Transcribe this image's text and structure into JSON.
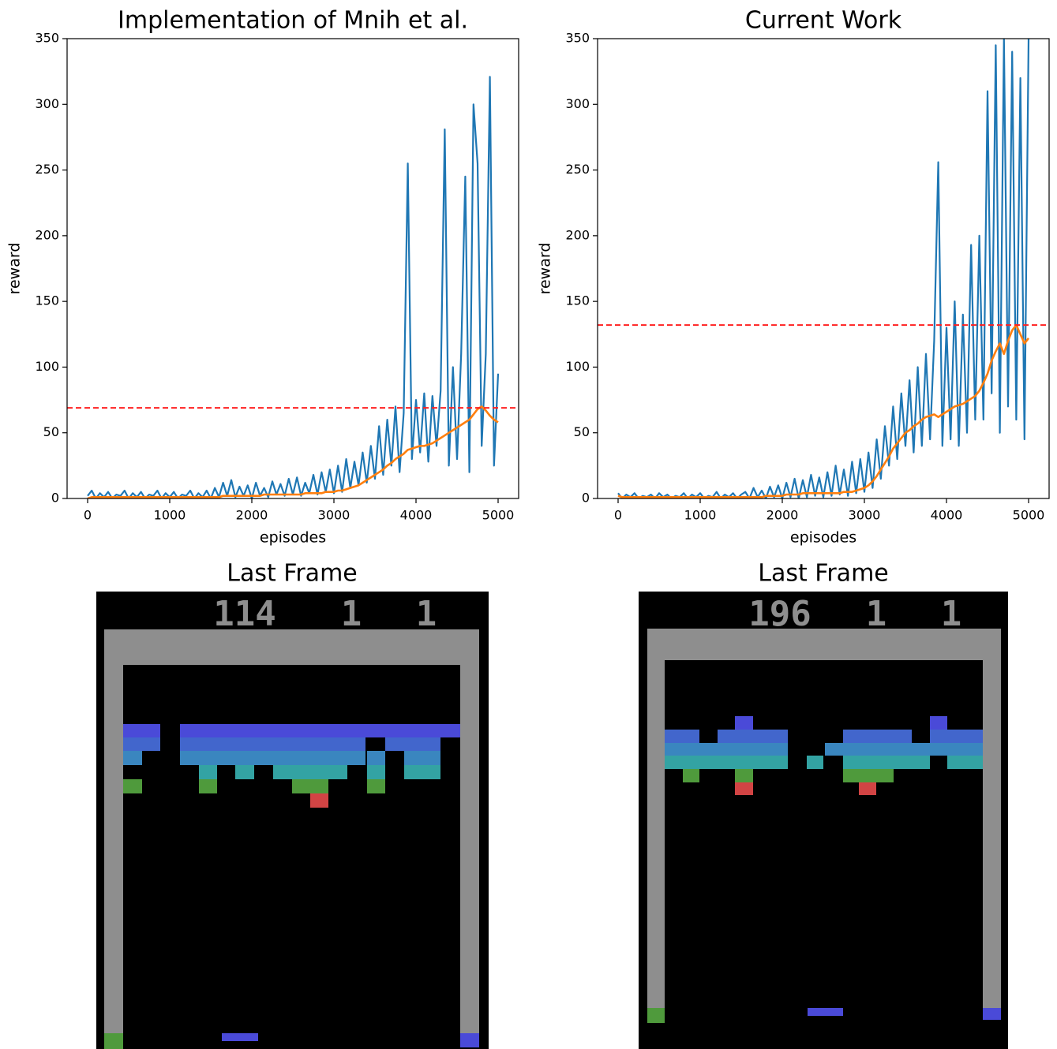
{
  "chart_data": [
    {
      "type": "line",
      "title": "Implementation of Mnih et al.",
      "xlabel": "episodes",
      "ylabel": "reward",
      "x": [
        0,
        50,
        100,
        150,
        200,
        250,
        300,
        350,
        400,
        450,
        500,
        550,
        600,
        650,
        700,
        750,
        800,
        850,
        900,
        950,
        1000,
        1050,
        1100,
        1150,
        1200,
        1250,
        1300,
        1350,
        1400,
        1450,
        1500,
        1550,
        1600,
        1650,
        1700,
        1750,
        1800,
        1850,
        1900,
        1950,
        2000,
        2050,
        2100,
        2150,
        2200,
        2250,
        2300,
        2350,
        2400,
        2450,
        2500,
        2550,
        2600,
        2650,
        2700,
        2750,
        2800,
        2850,
        2900,
        2950,
        3000,
        3050,
        3100,
        3150,
        3200,
        3250,
        3300,
        3350,
        3400,
        3450,
        3500,
        3550,
        3600,
        3650,
        3700,
        3750,
        3800,
        3850,
        3900,
        3950,
        4000,
        4050,
        4100,
        4150,
        4200,
        4250,
        4300,
        4350,
        4400,
        4450,
        4500,
        4550,
        4600,
        4650,
        4700,
        4750,
        4800,
        4850,
        4900,
        4950,
        5000
      ],
      "series": [
        {
          "color": "#1f77b4",
          "values": [
            2,
            6,
            0,
            4,
            1,
            5,
            0,
            3,
            2,
            6,
            0,
            4,
            1,
            5,
            0,
            3,
            2,
            6,
            0,
            4,
            1,
            5,
            0,
            3,
            2,
            6,
            0,
            4,
            1,
            6,
            0,
            8,
            1,
            12,
            2,
            14,
            1,
            9,
            2,
            10,
            0,
            12,
            2,
            8,
            1,
            13,
            3,
            11,
            2,
            15,
            3,
            16,
            2,
            12,
            4,
            18,
            3,
            20,
            5,
            22,
            4,
            25,
            5,
            30,
            8,
            28,
            10,
            35,
            12,
            40,
            15,
            55,
            18,
            60,
            25,
            70,
            20,
            65,
            255,
            30,
            75,
            35,
            80,
            28,
            78,
            40,
            82,
            281,
            25,
            100,
            30,
            110,
            245,
            20,
            300,
            255,
            40,
            110,
            321,
            25,
            95
          ]
        },
        {
          "color": "#ff7f0e",
          "values": [
            0,
            1,
            1,
            1,
            1,
            1,
            1,
            1,
            1,
            1,
            1,
            1,
            1,
            1,
            1,
            1,
            1,
            1,
            1,
            1,
            1,
            1,
            1,
            1,
            1,
            1,
            1,
            1,
            1,
            1,
            1,
            1,
            1,
            2,
            2,
            2,
            2,
            2,
            2,
            2,
            2,
            2,
            2,
            3,
            3,
            3,
            3,
            3,
            3,
            3,
            3,
            3,
            3,
            4,
            4,
            4,
            4,
            4,
            5,
            5,
            5,
            6,
            6,
            7,
            8,
            9,
            10,
            12,
            14,
            16,
            18,
            20,
            22,
            25,
            27,
            30,
            32,
            34,
            37,
            38,
            39,
            40,
            40,
            41,
            42,
            44,
            46,
            48,
            50,
            52,
            54,
            56,
            58,
            60,
            64,
            68,
            70,
            67,
            63,
            60,
            58
          ]
        }
      ],
      "threshold": {
        "value": 69,
        "color": "#ff2020"
      },
      "xlim": [
        -250,
        5250
      ],
      "ylim": [
        0,
        350
      ],
      "xticks": [
        0,
        1000,
        2000,
        3000,
        4000,
        5000
      ],
      "yticks": [
        0,
        50,
        100,
        150,
        200,
        250,
        300,
        350
      ],
      "grid": false
    },
    {
      "type": "line",
      "title": "Current Work",
      "xlabel": "episodes",
      "ylabel": "reward",
      "x": [
        0,
        50,
        100,
        150,
        200,
        250,
        300,
        350,
        400,
        450,
        500,
        550,
        600,
        650,
        700,
        750,
        800,
        850,
        900,
        950,
        1000,
        1050,
        1100,
        1150,
        1200,
        1250,
        1300,
        1350,
        1400,
        1450,
        1500,
        1550,
        1600,
        1650,
        1700,
        1750,
        1800,
        1850,
        1900,
        1950,
        2000,
        2050,
        2100,
        2150,
        2200,
        2250,
        2300,
        2350,
        2400,
        2450,
        2500,
        2550,
        2600,
        2650,
        2700,
        2750,
        2800,
        2850,
        2900,
        2950,
        3000,
        3050,
        3100,
        3150,
        3200,
        3250,
        3300,
        3350,
        3400,
        3450,
        3500,
        3550,
        3600,
        3650,
        3700,
        3750,
        3800,
        3850,
        3900,
        3950,
        4000,
        4050,
        4100,
        4150,
        4200,
        4250,
        4300,
        4350,
        4400,
        4450,
        4500,
        4550,
        4600,
        4650,
        4700,
        4750,
        4800,
        4850,
        4900,
        4950,
        5000
      ],
      "series": [
        {
          "color": "#1f77b4",
          "values": [
            4,
            0,
            3,
            1,
            4,
            0,
            2,
            1,
            3,
            0,
            4,
            1,
            3,
            0,
            2,
            1,
            4,
            0,
            3,
            1,
            4,
            0,
            2,
            1,
            5,
            0,
            3,
            1,
            4,
            0,
            3,
            5,
            0,
            8,
            1,
            6,
            0,
            9,
            1,
            10,
            0,
            12,
            1,
            15,
            0,
            14,
            1,
            18,
            2,
            16,
            1,
            20,
            2,
            25,
            3,
            22,
            2,
            28,
            4,
            30,
            5,
            35,
            8,
            45,
            15,
            55,
            25,
            70,
            30,
            80,
            40,
            90,
            35,
            100,
            40,
            110,
            45,
            120,
            256,
            40,
            130,
            45,
            150,
            40,
            140,
            50,
            193,
            60,
            200,
            60,
            310,
            80,
            345,
            50,
            350,
            70,
            340,
            60,
            320,
            45,
            350
          ]
        },
        {
          "color": "#ff7f0e",
          "values": [
            2,
            1,
            1,
            1,
            1,
            1,
            1,
            1,
            1,
            1,
            1,
            1,
            1,
            1,
            1,
            1,
            1,
            1,
            1,
            1,
            1,
            1,
            1,
            1,
            1,
            1,
            1,
            1,
            1,
            1,
            1,
            1,
            1,
            1,
            1,
            1,
            2,
            2,
            2,
            2,
            2,
            3,
            3,
            3,
            3,
            4,
            4,
            4,
            4,
            4,
            4,
            4,
            4,
            4,
            4,
            5,
            5,
            5,
            6,
            7,
            8,
            10,
            13,
            17,
            22,
            27,
            32,
            38,
            42,
            46,
            50,
            52,
            55,
            57,
            60,
            62,
            63,
            64,
            62,
            64,
            66,
            68,
            70,
            71,
            72,
            74,
            76,
            78,
            82,
            88,
            95,
            105,
            112,
            118,
            110,
            120,
            128,
            132,
            125,
            118,
            122
          ]
        }
      ],
      "threshold": {
        "value": 132,
        "color": "#ff2020"
      },
      "xlim": [
        -250,
        5250
      ],
      "ylim": [
        0,
        350
      ],
      "xticks": [
        0,
        1000,
        2000,
        3000,
        4000,
        5000
      ],
      "yticks": [
        0,
        50,
        100,
        150,
        200,
        250,
        300,
        350
      ],
      "grid": false
    }
  ],
  "frames": [
    {
      "title": "Last Frame",
      "score": "114",
      "lives": "1",
      "player": "1"
    },
    {
      "title": "Last Frame",
      "score": "196",
      "lives": "1",
      "player": "1"
    }
  ]
}
